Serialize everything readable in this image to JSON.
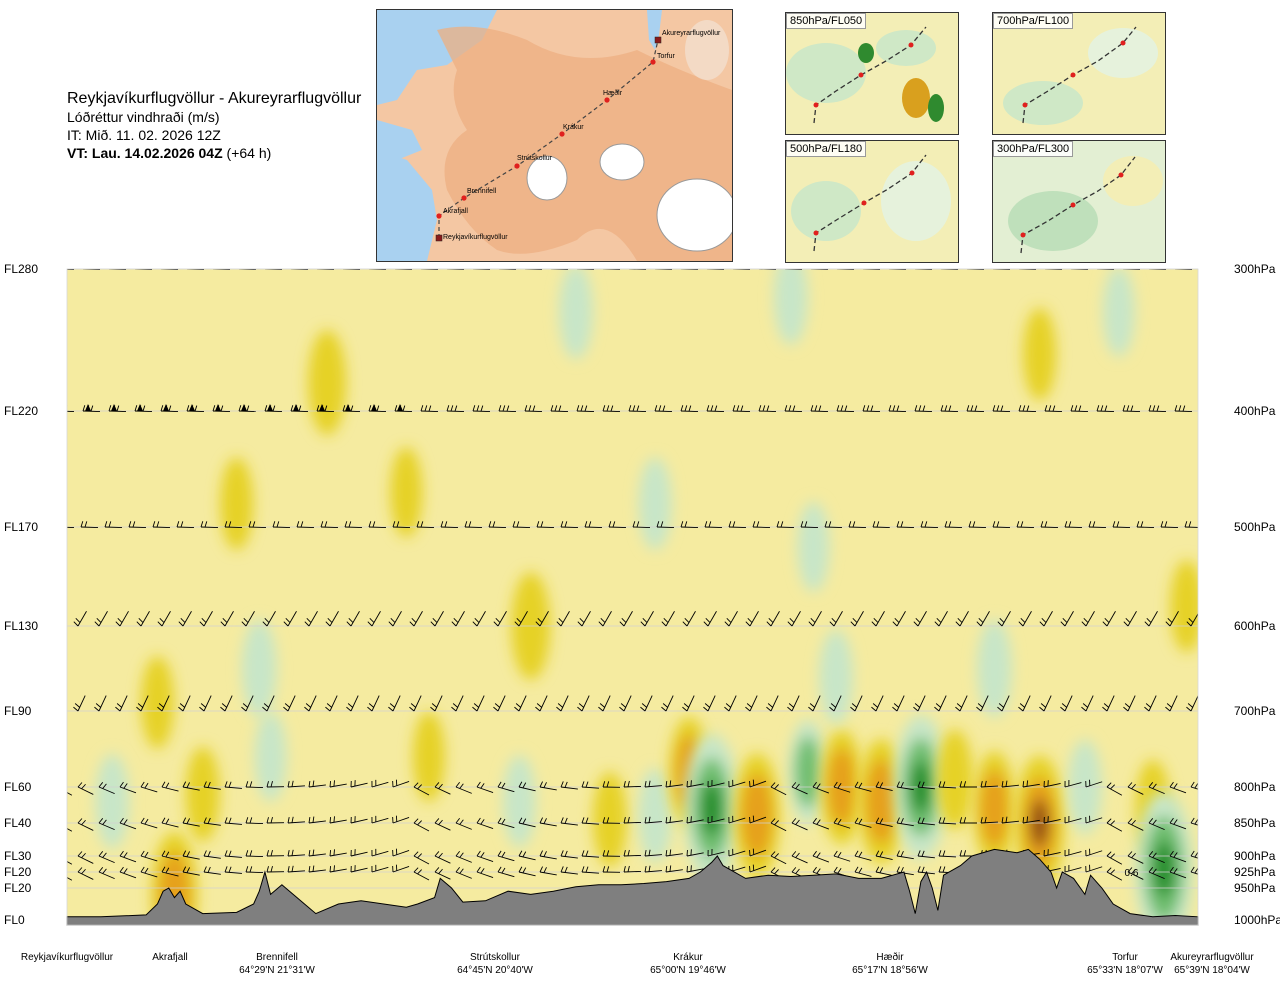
{
  "title": {
    "route": "Reykjavíkurflugvöllur - Akureyrarflugvöllur",
    "subtitle": "Lóðréttur vindhraði (m/s)",
    "issue_time": "IT: Mið. 11. 02. 2026 12Z",
    "valid_label": "VT: Lau. 14.02.2026 04Z",
    "valid_offset": "(+64 h)"
  },
  "route_map": {
    "labels": [
      "Akureyrarflugvöllur",
      "Torfur",
      "Hæðir",
      "Krákur",
      "Strútskollur",
      "Brennifell",
      "Akrafjall",
      "Reykjavíkurflugvöllur"
    ]
  },
  "level_maps": [
    {
      "label": "850hPa/FL050"
    },
    {
      "label": "700hPa/FL100"
    },
    {
      "label": "500hPa/FL180"
    },
    {
      "label": "300hPa/FL300"
    }
  ],
  "chart_data": {
    "type": "heatmap",
    "title": "Lóðréttur vindhraði (m/s)",
    "left_axis_fl": [
      "FL280",
      "FL220",
      "FL170",
      "FL130",
      "FL90",
      "FL60",
      "FL40",
      "FL30",
      "FL20",
      "FL20",
      "FL0"
    ],
    "right_axis_hpa": [
      "300hPa",
      "400hPa",
      "500hPa",
      "600hPa",
      "700hPa",
      "800hPa",
      "850hPa",
      "900hPa",
      "925hPa",
      "950hPa",
      "1000hPa"
    ],
    "pressure_levels_hpa": [
      300,
      400,
      500,
      600,
      700,
      800,
      850,
      900,
      925,
      950,
      1000
    ],
    "waypoints": [
      {
        "name": "Reykjavíkurflugvöllur",
        "coord": "",
        "pos": 0.0
      },
      {
        "name": "Akrafjall",
        "coord": "",
        "pos": 0.1
      },
      {
        "name": "Brennifell",
        "coord": "64°29'N 21°31'W",
        "pos": 0.185
      },
      {
        "name": "Strútskollur",
        "coord": "64°45'N 20°40'W",
        "pos": 0.376
      },
      {
        "name": "Krákur",
        "coord": "65°00'N 19°46'W",
        "pos": 0.57
      },
      {
        "name": "Hæðir",
        "coord": "65°17'N 18°56'W",
        "pos": 0.76
      },
      {
        "name": "Torfur",
        "coord": "65°33'N 18°07'W",
        "pos": 0.955
      },
      {
        "name": "Akureyrarflugvöllur",
        "coord": "65°39'N 18°04'W",
        "pos": 1.0
      }
    ],
    "annotations": [
      "0.6"
    ],
    "terrain_pressure_hpa": [
      [
        0.0,
        995
      ],
      [
        0.03,
        995
      ],
      [
        0.07,
        992
      ],
      [
        0.08,
        975
      ],
      [
        0.085,
        955
      ],
      [
        0.09,
        950
      ],
      [
        0.095,
        965
      ],
      [
        0.1,
        955
      ],
      [
        0.105,
        975
      ],
      [
        0.12,
        990
      ],
      [
        0.15,
        988
      ],
      [
        0.165,
        975
      ],
      [
        0.17,
        955
      ],
      [
        0.175,
        925
      ],
      [
        0.18,
        960
      ],
      [
        0.19,
        945
      ],
      [
        0.2,
        960
      ],
      [
        0.21,
        975
      ],
      [
        0.22,
        990
      ],
      [
        0.24,
        975
      ],
      [
        0.26,
        970
      ],
      [
        0.28,
        975
      ],
      [
        0.3,
        980
      ],
      [
        0.31,
        975
      ],
      [
        0.325,
        965
      ],
      [
        0.33,
        935
      ],
      [
        0.34,
        950
      ],
      [
        0.35,
        972
      ],
      [
        0.37,
        970
      ],
      [
        0.39,
        955
      ],
      [
        0.41,
        960
      ],
      [
        0.43,
        955
      ],
      [
        0.45,
        948
      ],
      [
        0.47,
        945
      ],
      [
        0.49,
        945
      ],
      [
        0.51,
        943
      ],
      [
        0.53,
        940
      ],
      [
        0.55,
        935
      ],
      [
        0.56,
        925
      ],
      [
        0.57,
        910
      ],
      [
        0.575,
        900
      ],
      [
        0.58,
        915
      ],
      [
        0.6,
        935
      ],
      [
        0.62,
        930
      ],
      [
        0.64,
        932
      ],
      [
        0.66,
        930
      ],
      [
        0.68,
        928
      ],
      [
        0.7,
        935
      ],
      [
        0.72,
        935
      ],
      [
        0.74,
        925
      ],
      [
        0.745,
        955
      ],
      [
        0.75,
        990
      ],
      [
        0.755,
        940
      ],
      [
        0.76,
        925
      ],
      [
        0.765,
        950
      ],
      [
        0.77,
        985
      ],
      [
        0.775,
        930
      ],
      [
        0.79,
        915
      ],
      [
        0.8,
        900
      ],
      [
        0.82,
        890
      ],
      [
        0.84,
        895
      ],
      [
        0.85,
        890
      ],
      [
        0.86,
        905
      ],
      [
        0.87,
        925
      ],
      [
        0.875,
        950
      ],
      [
        0.88,
        925
      ],
      [
        0.89,
        935
      ],
      [
        0.9,
        960
      ],
      [
        0.905,
        930
      ],
      [
        0.915,
        950
      ],
      [
        0.925,
        975
      ],
      [
        0.94,
        990
      ],
      [
        0.96,
        995
      ],
      [
        0.98,
        993
      ],
      [
        1.0,
        995
      ]
    ],
    "vertical_velocity_cells_ms": [
      {
        "x": 0.095,
        "p": 960,
        "v": 0.9
      },
      {
        "x": 0.12,
        "p": 810,
        "v": 0.3
      },
      {
        "x": 0.08,
        "p": 690,
        "v": 0.25
      },
      {
        "x": 0.18,
        "p": 760,
        "v": -0.2
      },
      {
        "x": 0.17,
        "p": 650,
        "v": -0.35
      },
      {
        "x": 0.15,
        "p": 480,
        "v": 0.25
      },
      {
        "x": 0.23,
        "p": 380,
        "v": 0.5
      },
      {
        "x": 0.32,
        "p": 760,
        "v": 0.2
      },
      {
        "x": 0.41,
        "p": 600,
        "v": 0.55
      },
      {
        "x": 0.4,
        "p": 820,
        "v": -0.25
      },
      {
        "x": 0.48,
        "p": 845,
        "v": 0.3
      },
      {
        "x": 0.52,
        "p": 840,
        "v": -0.3
      },
      {
        "x": 0.55,
        "p": 780,
        "v": 0.6
      },
      {
        "x": 0.57,
        "p": 830,
        "v": -1.4
      },
      {
        "x": 0.61,
        "p": 840,
        "v": 0.9
      },
      {
        "x": 0.655,
        "p": 780,
        "v": -0.5
      },
      {
        "x": 0.685,
        "p": 800,
        "v": 0.7
      },
      {
        "x": 0.72,
        "p": 820,
        "v": 0.9
      },
      {
        "x": 0.755,
        "p": 800,
        "v": -1.3
      },
      {
        "x": 0.785,
        "p": 790,
        "v": 0.4
      },
      {
        "x": 0.82,
        "p": 830,
        "v": 0.7
      },
      {
        "x": 0.86,
        "p": 850,
        "v": 1.1
      },
      {
        "x": 0.9,
        "p": 800,
        "v": -0.3
      },
      {
        "x": 0.96,
        "p": 830,
        "v": 0.35
      },
      {
        "x": 0.97,
        "p": 920,
        "v": -1.5
      },
      {
        "x": 0.82,
        "p": 650,
        "v": -0.35
      },
      {
        "x": 0.68,
        "p": 660,
        "v": -0.3
      },
      {
        "x": 0.86,
        "p": 360,
        "v": 0.25
      },
      {
        "x": 0.45,
        "p": 330,
        "v": -0.3
      },
      {
        "x": 0.52,
        "p": 480,
        "v": -0.25
      },
      {
        "x": 0.3,
        "p": 470,
        "v": 0.2
      },
      {
        "x": 0.64,
        "p": 320,
        "v": -0.3
      },
      {
        "x": 0.93,
        "p": 330,
        "v": -0.2
      },
      {
        "x": 0.99,
        "p": 580,
        "v": 0.25
      },
      {
        "x": 0.04,
        "p": 820,
        "v": -0.3
      },
      {
        "x": 0.66,
        "p": 520,
        "v": -0.2
      }
    ],
    "colors": {
      "terrain": "#7f7f7f",
      "strong_down": "#1e8c28",
      "moderate_down": "#6ebe6e",
      "weak_down": "#c8e6c8",
      "neutral": "#f8f5c8",
      "weak_up": "#f5eba0",
      "moderate_up": "#e6d228",
      "strong_up": "#e6a01e",
      "very_strong_up": "#8c4614"
    }
  }
}
